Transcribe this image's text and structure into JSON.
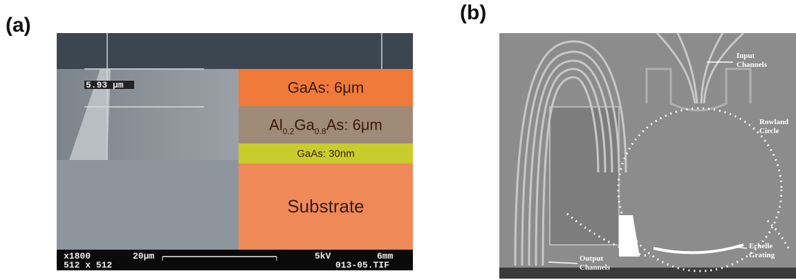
{
  "panel_a": {
    "label": "(a)",
    "scale_marker": "5.93 μm",
    "layers": [
      {
        "parts": [
          "GaAs: 6μm"
        ]
      },
      {
        "parts": [
          "Al",
          "0.2",
          "Ga",
          "0.8",
          "As: 6μm"
        ]
      },
      {
        "parts": [
          "GaAs: 30nm"
        ]
      },
      {
        "parts": [
          "Substrate"
        ]
      }
    ],
    "info_bar": {
      "magnification": "x1800",
      "scale": "20μm",
      "voltage": "5kV",
      "distance": "6mm",
      "resolution": "512 x 512",
      "file": "013-05.TIF"
    }
  },
  "panel_b": {
    "label": "(b)",
    "annotations": [
      "Input Channels",
      "Rowland Circle",
      "Echelle Grating",
      "Output Channels"
    ]
  }
}
